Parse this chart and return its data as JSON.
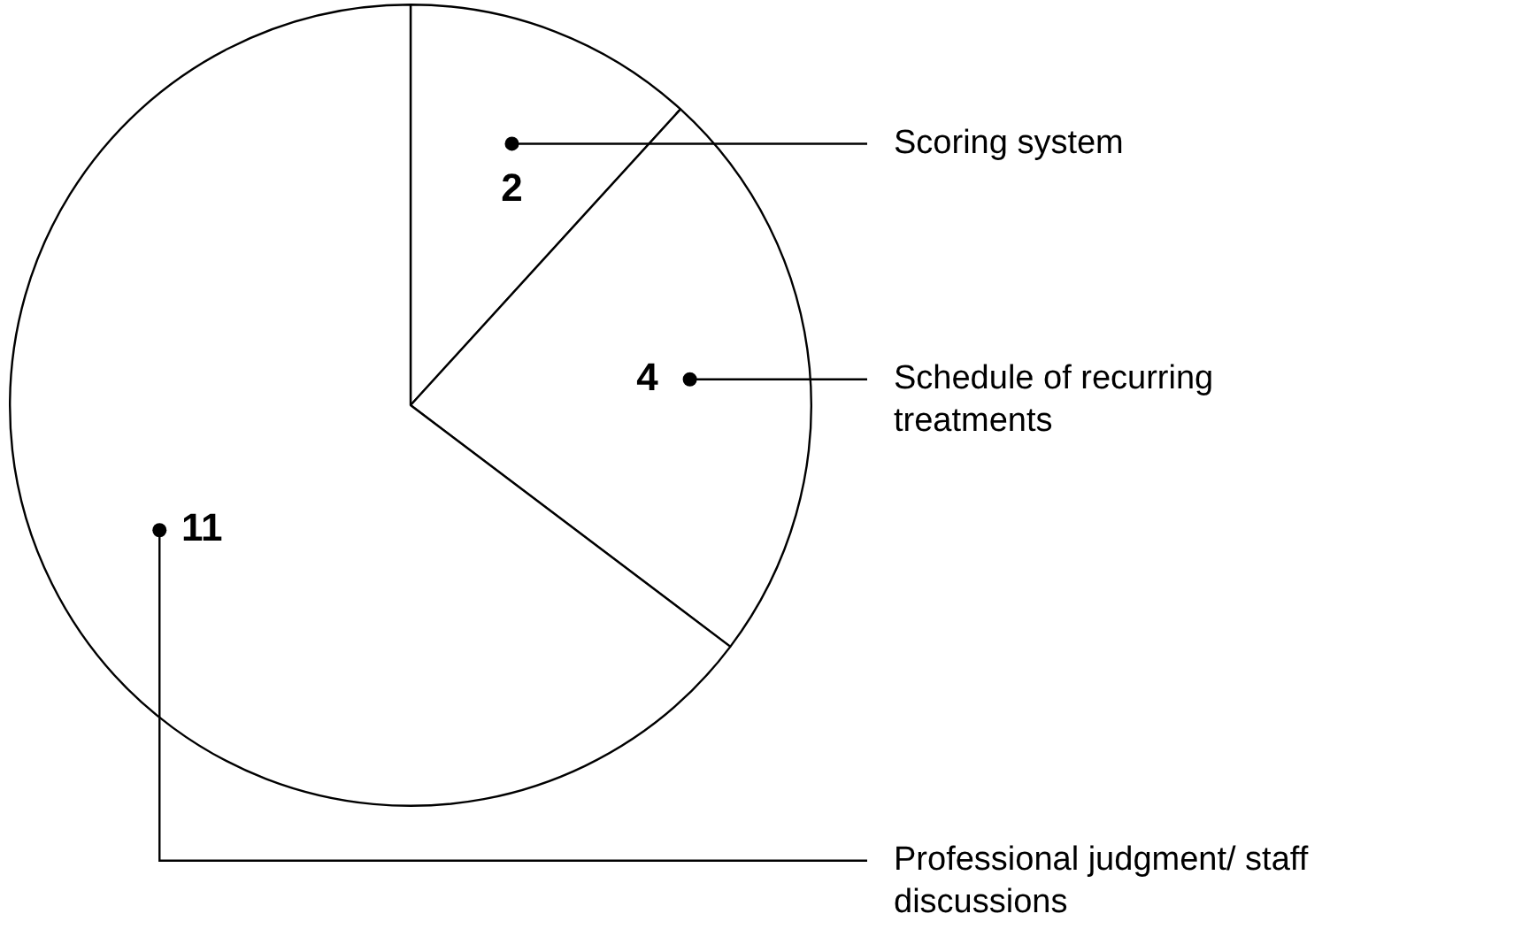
{
  "chart_data": {
    "type": "pie",
    "categories": [
      "Scoring system",
      "Schedule of recurring treatments",
      "Professional judgment/ staff discussions"
    ],
    "values": [
      2,
      4,
      11
    ],
    "colors": [
      "#ffffff",
      "#ffffff",
      "#ffffff"
    ],
    "data_labels": true,
    "legend": false
  }
}
